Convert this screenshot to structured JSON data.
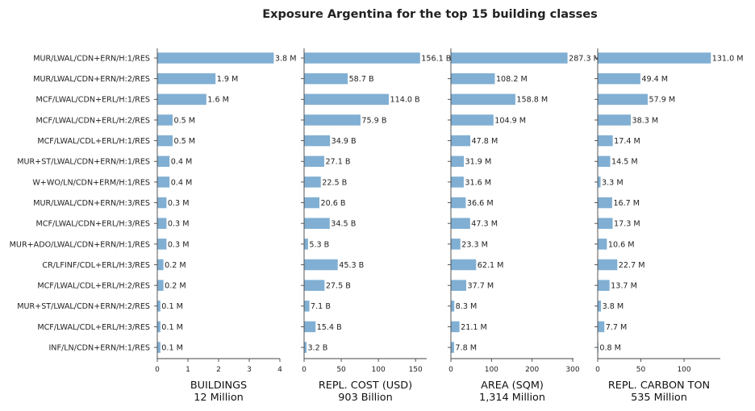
{
  "chart_data": {
    "type": "bar",
    "orientation": "horizontal",
    "title": "Exposure Argentina for the top 15 building classes",
    "bar_color": "#80afd3",
    "categories": [
      "MUR/LWAL/CDN+ERN/H:1/RES",
      "MUR/LWAL/CDN+ERN/H:2/RES",
      "MCF/LWAL/CDN+ERL/H:1/RES",
      "MCF/LWAL/CDN+ERL/H:2/RES",
      "MCF/LWAL/CDL+ERL/H:1/RES",
      "MUR+ST/LWAL/CDN+ERN/H:1/RES",
      "W+WO/LN/CDN+ERM/H:1/RES",
      "MUR/LWAL/CDN+ERN/H:3/RES",
      "MCF/LWAL/CDN+ERL/H:3/RES",
      "MUR+ADO/LWAL/CDN+ERN/H:1/RES",
      "CR/LFINF/CDL+ERL/H:3/RES",
      "MCF/LWAL/CDL+ERL/H:2/RES",
      "MUR+ST/LWAL/CDN+ERN/H:2/RES",
      "MCF/LWAL/CDL+ERL/H:3/RES",
      "INF/LN/CDN+ERN/H:1/RES"
    ],
    "panels": [
      {
        "xlabel": "BUILDINGS",
        "subtitle": "12 Million",
        "xlim": [
          0,
          4
        ],
        "xticks": [
          0,
          1,
          2,
          3,
          4
        ],
        "values": [
          3.8,
          1.9,
          1.6,
          0.5,
          0.5,
          0.4,
          0.4,
          0.3,
          0.3,
          0.3,
          0.2,
          0.2,
          0.1,
          0.1,
          0.1
        ],
        "labels": [
          "3.8 M",
          "1.9 M",
          "1.6 M",
          "0.5 M",
          "0.5 M",
          "0.4 M",
          "0.4 M",
          "0.3 M",
          "0.3 M",
          "0.3 M",
          "0.2 M",
          "0.2 M",
          "0.1 M",
          "0.1 M",
          "0.1 M"
        ]
      },
      {
        "xlabel": "REPL. COST (USD)",
        "subtitle": "903 Billion",
        "xlim": [
          0,
          165
        ],
        "xticks": [
          0,
          50,
          100,
          150
        ],
        "values": [
          156.1,
          58.7,
          114.0,
          75.9,
          34.9,
          27.1,
          22.5,
          20.6,
          34.5,
          5.3,
          45.3,
          27.5,
          7.1,
          15.4,
          3.2
        ],
        "labels": [
          "156.1 B",
          "58.7 B",
          "114.0 B",
          "75.9 B",
          "34.9 B",
          "27.1 B",
          "22.5 B",
          "20.6 B",
          "34.5 B",
          "5.3 B",
          "45.3 B",
          "27.5 B",
          "7.1 B",
          "15.4 B",
          "3.2 B"
        ]
      },
      {
        "xlabel": "AREA (SQM)",
        "subtitle": "1,314 Million",
        "xlim": [
          0,
          302
        ],
        "xticks": [
          0,
          100,
          200,
          300
        ],
        "values": [
          287.3,
          108.2,
          158.8,
          104.9,
          47.8,
          31.9,
          31.6,
          36.6,
          47.3,
          23.3,
          62.1,
          37.7,
          8.3,
          21.1,
          7.8
        ],
        "labels": [
          "287.3 M",
          "108.2 M",
          "158.8 M",
          "104.9 M",
          "47.8 M",
          "31.9 M",
          "31.6 M",
          "36.6 M",
          "47.3 M",
          "23.3 M",
          "62.1 M",
          "37.7 M",
          "8.3 M",
          "21.1 M",
          "7.8 M"
        ]
      },
      {
        "xlabel": "REPL. CARBON TON",
        "subtitle": "535 Million",
        "xlim": [
          0,
          142
        ],
        "xticks": [
          0,
          50,
          100
        ],
        "values": [
          131.0,
          49.4,
          57.9,
          38.3,
          17.4,
          14.5,
          3.3,
          16.7,
          17.3,
          10.6,
          22.7,
          13.7,
          3.8,
          7.7,
          0.8
        ],
        "labels": [
          "131.0 M",
          "49.4 M",
          "57.9 M",
          "38.3 M",
          "17.4 M",
          "14.5 M",
          "3.3 M",
          "16.7 M",
          "17.3 M",
          "10.6 M",
          "22.7 M",
          "13.7 M",
          "3.8 M",
          "7.7 M",
          "0.8 M"
        ]
      }
    ]
  }
}
